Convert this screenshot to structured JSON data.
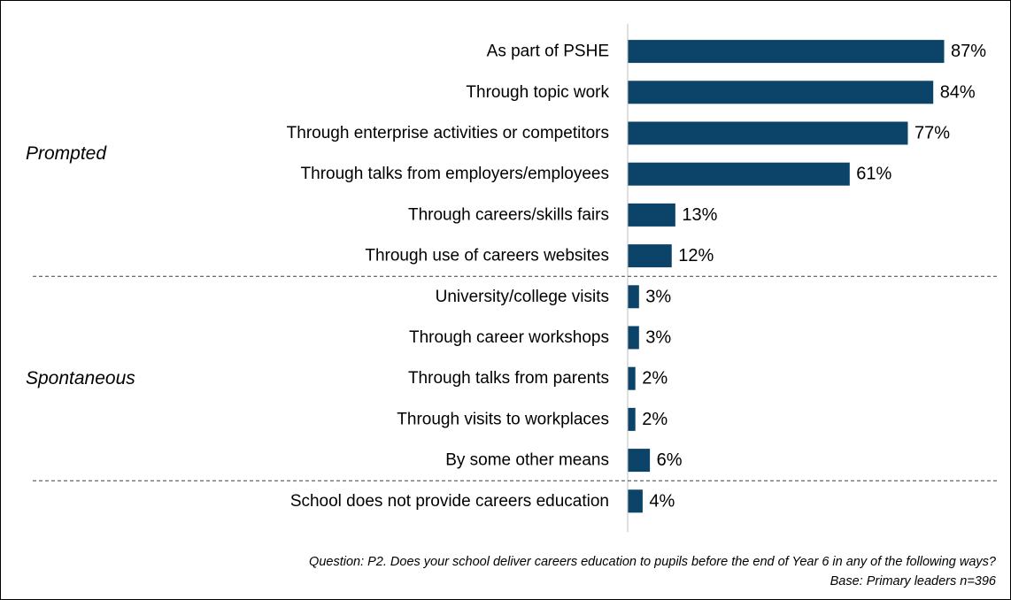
{
  "colors": {
    "bar": "#0b4468",
    "axis": "#bfbfbf",
    "divider": "#404040"
  },
  "chart_data": {
    "type": "bar",
    "orientation": "horizontal",
    "categories": [
      "As part of PSHE",
      "Through topic work",
      "Through enterprise activities or competitors",
      "Through talks from employers/employees",
      "Through careers/skills fairs",
      "Through use of careers websites",
      "University/college visits",
      "Through career workshops",
      "Through talks from parents",
      "Through visits to workplaces",
      "By some other means",
      "School does not provide careers education"
    ],
    "values": [
      87,
      84,
      77,
      61,
      13,
      12,
      3,
      3,
      2,
      2,
      6,
      4
    ],
    "value_labels": [
      "87%",
      "84%",
      "77%",
      "61%",
      "13%",
      "12%",
      "3%",
      "3%",
      "2%",
      "2%",
      "6%",
      "4%"
    ],
    "unit": "%",
    "xlim": [
      0,
      100
    ],
    "grid": false,
    "legend": "none",
    "groups": [
      {
        "label": "Prompted",
        "start": 0,
        "end": 5
      },
      {
        "label": "Spontaneous",
        "start": 6,
        "end": 10
      },
      {
        "label": "",
        "start": 11,
        "end": 11
      }
    ]
  },
  "footnotes": {
    "question": "Question: P2. Does your school deliver careers education to pupils before the end of Year 6 in any of the following ways?",
    "base": "Base: Primary leaders n=396"
  }
}
